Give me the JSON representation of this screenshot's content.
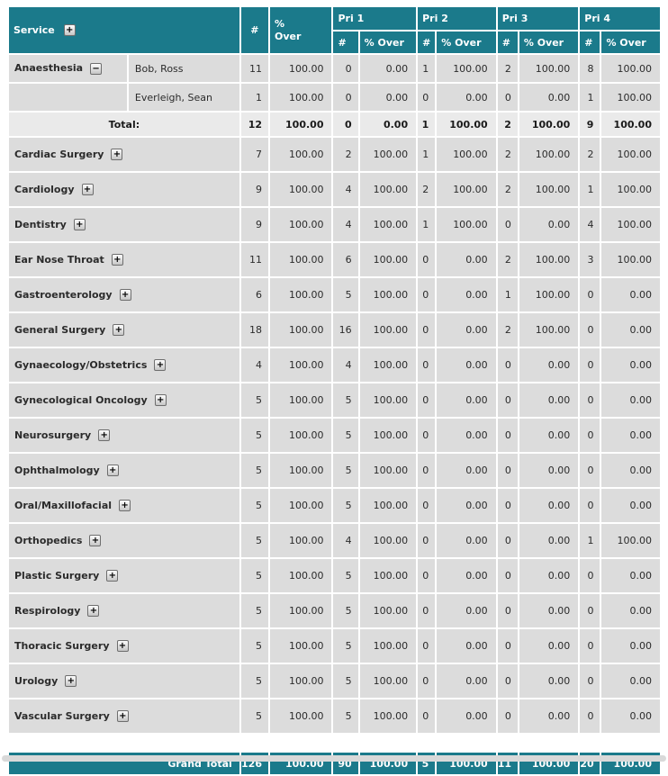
{
  "colors": {
    "teal": "#1b7a8b",
    "header_text": "#ffffff",
    "row_bg": "#dcdcdc",
    "total_row_bg": "#eaeaea",
    "cell_text": "#2b2b2b",
    "scrollbar": "#d9d9d9"
  },
  "icons": {
    "expand": "+",
    "collapse": "−"
  },
  "header": {
    "service": "Service",
    "count": "#",
    "over": "% Over",
    "pri_groups": [
      "Pri 1",
      "Pri 2",
      "Pri 3",
      "Pri 4"
    ],
    "sub_count": "#",
    "sub_over": "% Over"
  },
  "rows": [
    {
      "type": "detail",
      "service": "Anaesthesia",
      "employee": "Bob, Ross",
      "values": [
        "11",
        "100.00",
        "0",
        "0.00",
        "1",
        "100.00",
        "2",
        "100.00",
        "8",
        "100.00"
      ]
    },
    {
      "type": "detail",
      "service": "",
      "employee": "Everleigh, Sean",
      "values": [
        "1",
        "100.00",
        "0",
        "0.00",
        "0",
        "0.00",
        "0",
        "0.00",
        "1",
        "100.00"
      ]
    },
    {
      "type": "total",
      "label": "Total:",
      "values": [
        "12",
        "100.00",
        "0",
        "0.00",
        "1",
        "100.00",
        "2",
        "100.00",
        "9",
        "100.00"
      ]
    },
    {
      "type": "service",
      "service": "Cardiac Surgery",
      "values": [
        "7",
        "100.00",
        "2",
        "100.00",
        "1",
        "100.00",
        "2",
        "100.00",
        "2",
        "100.00"
      ]
    },
    {
      "type": "service",
      "service": "Cardiology",
      "values": [
        "9",
        "100.00",
        "4",
        "100.00",
        "2",
        "100.00",
        "2",
        "100.00",
        "1",
        "100.00"
      ]
    },
    {
      "type": "service",
      "service": "Dentistry",
      "values": [
        "9",
        "100.00",
        "4",
        "100.00",
        "1",
        "100.00",
        "0",
        "0.00",
        "4",
        "100.00"
      ]
    },
    {
      "type": "service",
      "service": "Ear Nose Throat",
      "values": [
        "11",
        "100.00",
        "6",
        "100.00",
        "0",
        "0.00",
        "2",
        "100.00",
        "3",
        "100.00"
      ]
    },
    {
      "type": "service",
      "service": "Gastroenterology",
      "values": [
        "6",
        "100.00",
        "5",
        "100.00",
        "0",
        "0.00",
        "1",
        "100.00",
        "0",
        "0.00"
      ]
    },
    {
      "type": "service",
      "service": "General Surgery",
      "values": [
        "18",
        "100.00",
        "16",
        "100.00",
        "0",
        "0.00",
        "2",
        "100.00",
        "0",
        "0.00"
      ]
    },
    {
      "type": "service",
      "service": "Gynaecology/Obstetrics",
      "values": [
        "4",
        "100.00",
        "4",
        "100.00",
        "0",
        "0.00",
        "0",
        "0.00",
        "0",
        "0.00"
      ]
    },
    {
      "type": "service",
      "service": "Gynecological Oncology",
      "values": [
        "5",
        "100.00",
        "5",
        "100.00",
        "0",
        "0.00",
        "0",
        "0.00",
        "0",
        "0.00"
      ]
    },
    {
      "type": "service",
      "service": "Neurosurgery",
      "values": [
        "5",
        "100.00",
        "5",
        "100.00",
        "0",
        "0.00",
        "0",
        "0.00",
        "0",
        "0.00"
      ]
    },
    {
      "type": "service",
      "service": "Ophthalmology",
      "values": [
        "5",
        "100.00",
        "5",
        "100.00",
        "0",
        "0.00",
        "0",
        "0.00",
        "0",
        "0.00"
      ]
    },
    {
      "type": "service",
      "service": "Oral/Maxillofacial",
      "values": [
        "5",
        "100.00",
        "5",
        "100.00",
        "0",
        "0.00",
        "0",
        "0.00",
        "0",
        "0.00"
      ]
    },
    {
      "type": "service",
      "service": "Orthopedics",
      "values": [
        "5",
        "100.00",
        "4",
        "100.00",
        "0",
        "0.00",
        "0",
        "0.00",
        "1",
        "100.00"
      ]
    },
    {
      "type": "service",
      "service": "Plastic Surgery",
      "values": [
        "5",
        "100.00",
        "5",
        "100.00",
        "0",
        "0.00",
        "0",
        "0.00",
        "0",
        "0.00"
      ]
    },
    {
      "type": "service",
      "service": "Respirology",
      "values": [
        "5",
        "100.00",
        "5",
        "100.00",
        "0",
        "0.00",
        "0",
        "0.00",
        "0",
        "0.00"
      ]
    },
    {
      "type": "service",
      "service": "Thoracic Surgery",
      "values": [
        "5",
        "100.00",
        "5",
        "100.00",
        "0",
        "0.00",
        "0",
        "0.00",
        "0",
        "0.00"
      ]
    },
    {
      "type": "service",
      "service": "Urology",
      "values": [
        "5",
        "100.00",
        "5",
        "100.00",
        "0",
        "0.00",
        "0",
        "0.00",
        "0",
        "0.00"
      ]
    },
    {
      "type": "service",
      "service": "Vascular Surgery",
      "values": [
        "5",
        "100.00",
        "5",
        "100.00",
        "0",
        "0.00",
        "0",
        "0.00",
        "0",
        "0.00"
      ]
    }
  ],
  "grand_total": {
    "label": "Grand Total",
    "values": [
      "126",
      "100.00",
      "90",
      "100.00",
      "5",
      "100.00",
      "11",
      "100.00",
      "20",
      "100.00"
    ]
  }
}
